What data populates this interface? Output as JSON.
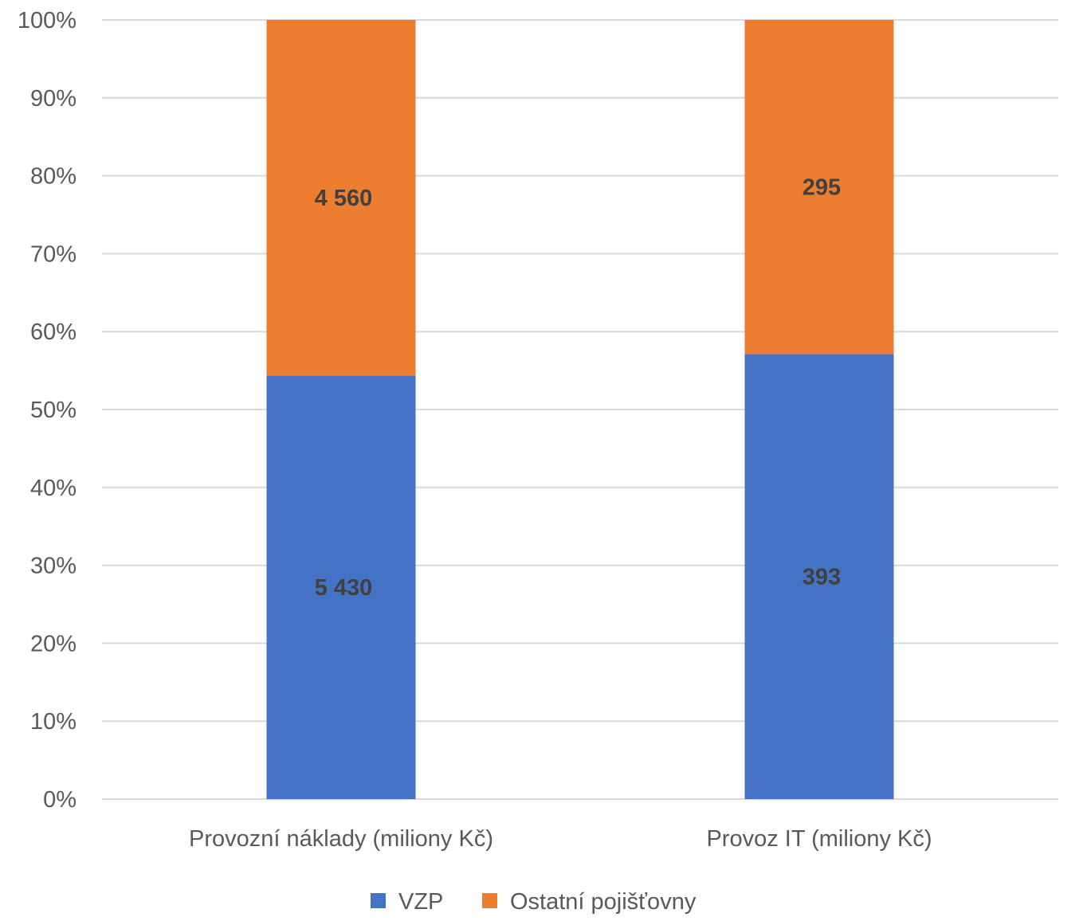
{
  "chart_data": {
    "type": "bar",
    "stacked": "percent",
    "title": "",
    "xlabel": "",
    "ylabel": "",
    "ylim": [
      0,
      100
    ],
    "yticks": [
      "0%",
      "10%",
      "20%",
      "30%",
      "40%",
      "50%",
      "60%",
      "70%",
      "80%",
      "90%",
      "100%"
    ],
    "grid": true,
    "categories": [
      "Provozní náklady (miliony Kč)",
      "Provoz IT (miliony Kč)"
    ],
    "series": [
      {
        "name": "VZP",
        "color": "#4472C4",
        "values": [
          5430,
          393
        ],
        "labels": [
          "5 430",
          "393"
        ]
      },
      {
        "name": "Ostatní pojišťovny",
        "color": "#ED7D31",
        "values": [
          4560,
          295
        ],
        "labels": [
          "4 560",
          "295"
        ]
      }
    ],
    "legend_position": "bottom"
  }
}
